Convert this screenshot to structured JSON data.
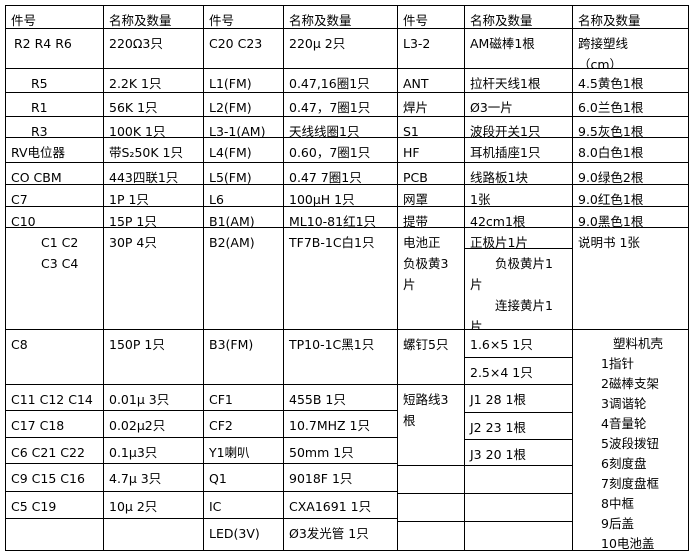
{
  "header": [
    "件号",
    "名称及数量",
    "件号",
    "名称及数量",
    "件号",
    "名称及数量",
    "名称及数量"
  ],
  "left_rows": [
    {
      "part1": "R2 R4 R6",
      "spec1": "220Ω3只",
      "part2": "C20 C23",
      "spec2": "220μ 2只"
    },
    {
      "part1": "R5",
      "spec1": "2.2K 1只",
      "part2": "L1(FM)",
      "spec2": "0.47,16圈1只"
    },
    {
      "part1": "R1",
      "spec1": "56K 1只",
      "part2": "L2(FM)",
      "spec2": "0.47，7圈1只"
    },
    {
      "part1": "R3",
      "spec1": "100K 1只",
      "part2": "L3-1(AM)",
      "spec2": "天线线圈1只"
    },
    {
      "part1": "RV电位器",
      "spec1": "带S₂50K 1只",
      "part2": "L4(FM)",
      "spec2": "0.60，7圈1只"
    },
    {
      "part1": "CO CBM",
      "spec1": "443四联1只",
      "part2": "L5(FM)",
      "spec2": "0.47 7圈1只"
    },
    {
      "part1": "C7",
      "spec1": "1P 1只",
      "part2": "L6",
      "spec2": "100μH 1只"
    },
    {
      "part1": "C10",
      "spec1": "15P 1只",
      "part2": "B1(AM)",
      "spec2": "ML10-81红1只"
    },
    {
      "part1": "C1 C2\nC3 C4",
      "spec1": "30P 4只",
      "part2": "B2(AM)",
      "spec2": "TF7B-1C白1只"
    },
    {
      "part1": "C8",
      "spec1": "150P 1只",
      "part2": "B3(FM)",
      "spec2": "TP10-1C黑1只"
    },
    {
      "part1": "C11 C12 C14",
      "spec1": "0.01μ 3只",
      "part2": "CF1",
      "spec2": "455B 1只"
    },
    {
      "part1": "C17 C18",
      "spec1": "0.02μ2只",
      "part2": "CF2",
      "spec2": "10.7MHZ 1只"
    },
    {
      "part1": "C6 C21 C22",
      "spec1": "0.1μ3只",
      "part2": "Y1喇叭",
      "spec2": "50mm 1只"
    },
    {
      "part1": "C9 C15 C16",
      "spec1": "4.7μ 3只",
      "part2": "Q1",
      "spec2": "9018F  1只"
    },
    {
      "part1": "C5 C19",
      "spec1": "10μ 2只",
      "part2": "IC",
      "spec2": "CXA1691 1只"
    },
    {
      "part1": "",
      "spec1": "",
      "part2": "LED(3V)",
      "spec2": "Ø3发光管 1只"
    }
  ],
  "right_rows": [
    {
      "part": "L3-2",
      "spec": "AM磁棒1根",
      "extra": "跨接塑线\n（cm）"
    },
    {
      "part": "ANT",
      "spec": "拉杆天线1根",
      "extra": "4.5黄色1根"
    },
    {
      "part": "焊片",
      "spec": "Ø3一片",
      "extra": "6.0兰色1根"
    },
    {
      "part": "S1",
      "spec": "波段开关1只",
      "extra": "9.5灰色1根"
    },
    {
      "part": "HF",
      "spec": "耳机插座1只",
      "extra": "8.0白色1根"
    },
    {
      "part": "PCB",
      "spec": "线路板1块",
      "extra": "9.0绿色2根"
    },
    {
      "part": "网罩",
      "spec": "1张",
      "extra": "9.0红色1根"
    },
    {
      "part": "提带",
      "spec": "42cm1根",
      "extra": "9.0黑色1根"
    }
  ],
  "battery": {
    "part": "电池正\n负极黄3\n片",
    "positive": "正极片1片",
    "others": "　　负极黄片1\n片\n　　连接黄片1\n片",
    "manual": "说明书 1张"
  },
  "screws": {
    "part": "螺钉5只",
    "s1": "1.6×5 1只",
    "s2": "2.5×4 1只"
  },
  "jumpers": {
    "part": "短路线3\n根",
    "j1": "J1 28 1根",
    "j2": "J2 23 1根",
    "j3": "J3 20 1根"
  },
  "case": {
    "title": "塑料机壳",
    "items": "1指针\n2磁棒支架\n3调谐轮\n4音量轮\n5波段拨钮\n6刻度盘\n7刻度盘框\n8中框\n9后盖\n10电池盖"
  }
}
